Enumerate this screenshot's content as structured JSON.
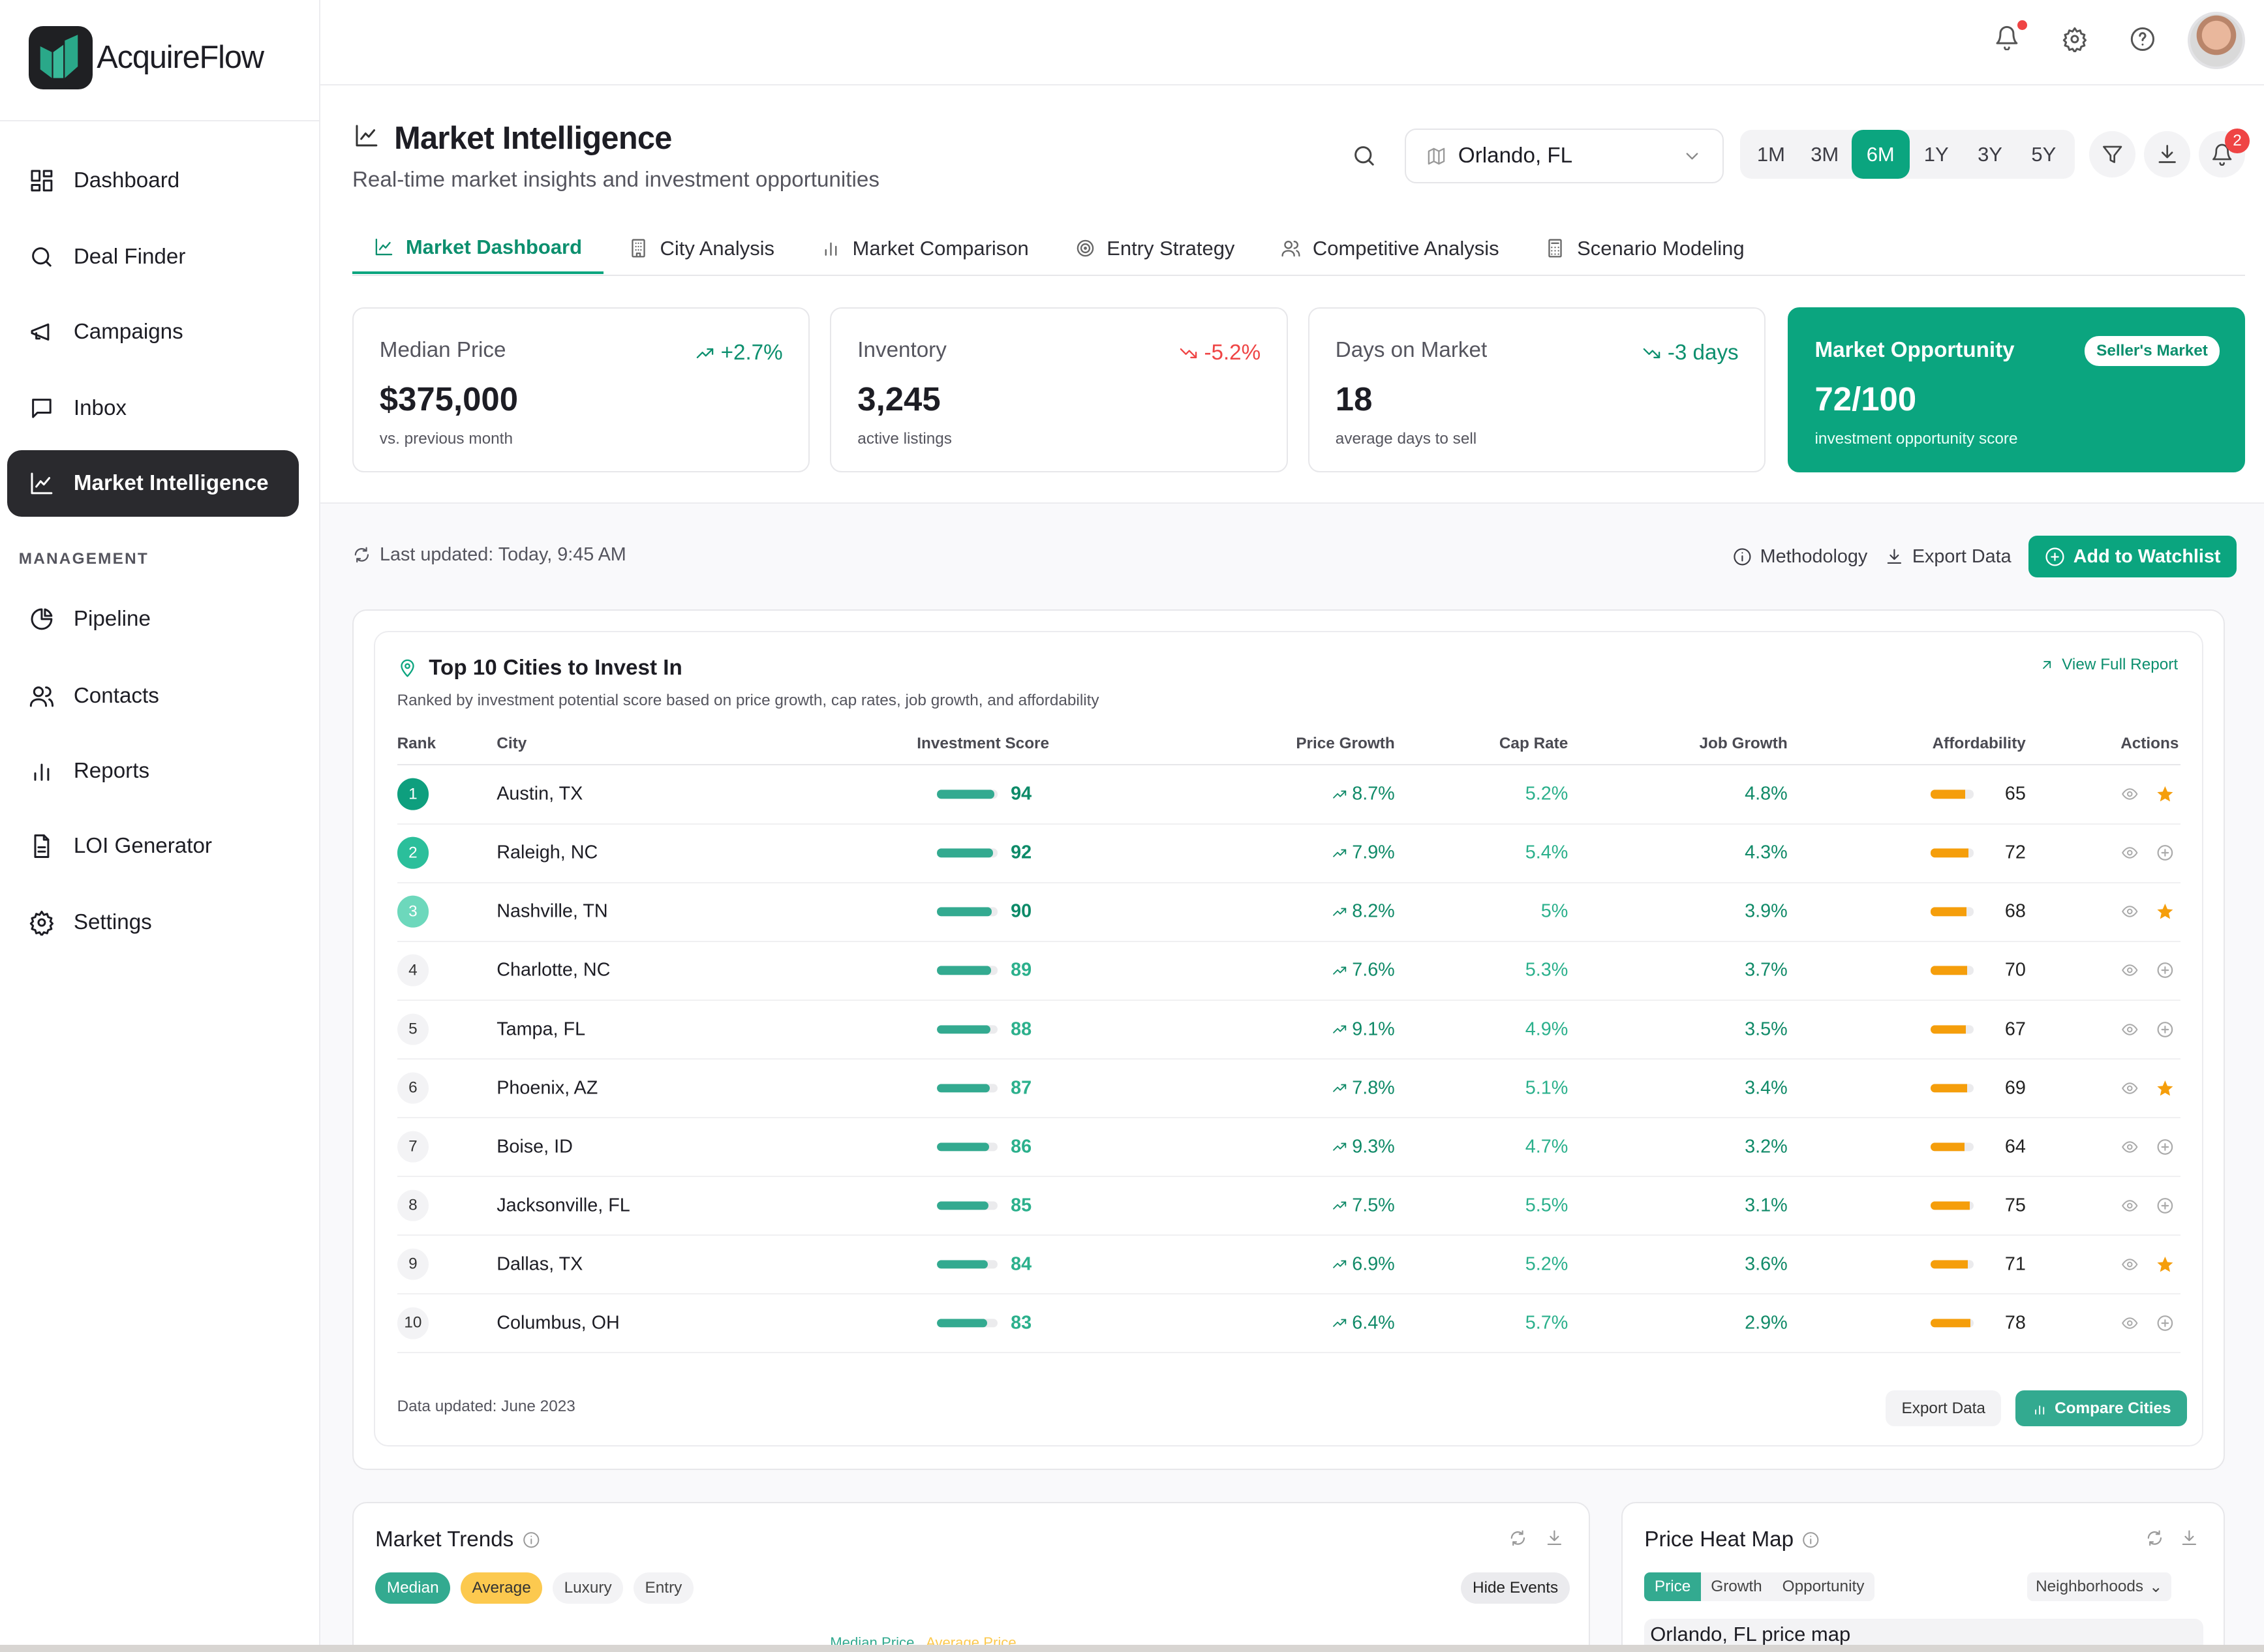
{
  "brand": {
    "name": "AcquireFlow"
  },
  "colors": {
    "accent": "#0ba57f",
    "active_nav": "#2a2a2e",
    "negative": "#ef4444",
    "affordability": "#f59e0b"
  },
  "sidebar": {
    "items": [
      {
        "label": "Dashboard",
        "icon": "dashboard-icon"
      },
      {
        "label": "Deal Finder",
        "icon": "search-icon"
      },
      {
        "label": "Campaigns",
        "icon": "megaphone-icon"
      },
      {
        "label": "Inbox",
        "icon": "message-icon"
      },
      {
        "label": "Market Intelligence",
        "icon": "chart-line-icon",
        "active": true
      }
    ],
    "section_label": "MANAGEMENT",
    "management": [
      {
        "label": "Pipeline",
        "icon": "pie-chart-icon"
      },
      {
        "label": "Contacts",
        "icon": "users-icon"
      },
      {
        "label": "Reports",
        "icon": "bar-chart-icon"
      },
      {
        "label": "LOI Generator",
        "icon": "file-text-icon"
      },
      {
        "label": "Settings",
        "icon": "gear-icon"
      }
    ]
  },
  "header": {
    "title": "Market Intelligence",
    "subtitle": "Real-time market insights and investment opportunities",
    "location": "Orlando, FL",
    "periods": [
      "1M",
      "3M",
      "6M",
      "1Y",
      "3Y",
      "5Y"
    ],
    "selected_period": "6M",
    "notification_count": "2"
  },
  "tabs": [
    {
      "label": "Market Dashboard",
      "active": true
    },
    {
      "label": "City Analysis"
    },
    {
      "label": "Market Comparison"
    },
    {
      "label": "Entry Strategy"
    },
    {
      "label": "Competitive Analysis"
    },
    {
      "label": "Scenario Modeling"
    }
  ],
  "cards": [
    {
      "label": "Median Price",
      "delta": "+2.7%",
      "trend": "up",
      "value": "$375,000",
      "sub": "vs. previous month"
    },
    {
      "label": "Inventory",
      "delta": "-5.2%",
      "trend": "down-negative",
      "value": "3,245",
      "sub": "active listings"
    },
    {
      "label": "Days on Market",
      "delta": "-3 days",
      "trend": "down-positive",
      "value": "18",
      "sub": "average days to sell"
    },
    {
      "label": "Market Opportunity",
      "badge": "Seller's Market",
      "value": "72/100",
      "sub": "investment opportunity score"
    }
  ],
  "toolbar": {
    "last_updated": "Last updated: Today, 9:45 AM",
    "methodology": "Methodology",
    "export": "Export Data",
    "watchlist": "Add to Watchlist"
  },
  "cities": {
    "title": "Top 10 Cities to Invest In",
    "subtitle": "Ranked by investment potential score based on price growth, cap rates, job growth, and affordability",
    "view_full": "View Full Report",
    "columns": [
      "Rank",
      "City",
      "Investment Score",
      "Price Growth",
      "Cap Rate",
      "Job Growth",
      "Affordability",
      "Actions"
    ],
    "rows": [
      {
        "rank": "1",
        "city": "Austin, TX",
        "score": 94,
        "price_growth": "8.7%",
        "cap_rate": "5.2%",
        "job_growth": "4.8%",
        "affordability": 65,
        "starred": true
      },
      {
        "rank": "2",
        "city": "Raleigh, NC",
        "score": 92,
        "price_growth": "7.9%",
        "cap_rate": "5.4%",
        "job_growth": "4.3%",
        "affordability": 72,
        "starred": false
      },
      {
        "rank": "3",
        "city": "Nashville, TN",
        "score": 90,
        "price_growth": "8.2%",
        "cap_rate": "5%",
        "job_growth": "3.9%",
        "affordability": 68,
        "starred": true
      },
      {
        "rank": "4",
        "city": "Charlotte, NC",
        "score": 89,
        "price_growth": "7.6%",
        "cap_rate": "5.3%",
        "job_growth": "3.7%",
        "affordability": 70,
        "starred": false
      },
      {
        "rank": "5",
        "city": "Tampa, FL",
        "score": 88,
        "price_growth": "9.1%",
        "cap_rate": "4.9%",
        "job_growth": "3.5%",
        "affordability": 67,
        "starred": false
      },
      {
        "rank": "6",
        "city": "Phoenix, AZ",
        "score": 87,
        "price_growth": "7.8%",
        "cap_rate": "5.1%",
        "job_growth": "3.4%",
        "affordability": 69,
        "starred": true
      },
      {
        "rank": "7",
        "city": "Boise, ID",
        "score": 86,
        "price_growth": "9.3%",
        "cap_rate": "4.7%",
        "job_growth": "3.2%",
        "affordability": 64,
        "starred": false
      },
      {
        "rank": "8",
        "city": "Jacksonville, FL",
        "score": 85,
        "price_growth": "7.5%",
        "cap_rate": "5.5%",
        "job_growth": "3.1%",
        "affordability": 75,
        "starred": false
      },
      {
        "rank": "9",
        "city": "Dallas, TX",
        "score": 84,
        "price_growth": "6.9%",
        "cap_rate": "5.2%",
        "job_growth": "3.6%",
        "affordability": 71,
        "starred": true
      },
      {
        "rank": "10",
        "city": "Columbus, OH",
        "score": 83,
        "price_growth": "6.4%",
        "cap_rate": "5.7%",
        "job_growth": "2.9%",
        "affordability": 78,
        "starred": false
      }
    ],
    "footer": "Data updated: June 2023",
    "export": "Export Data",
    "compare": "Compare Cities"
  },
  "trends": {
    "title": "Market Trends",
    "chips": [
      "Median",
      "Average",
      "Luxury",
      "Entry"
    ],
    "hide_events": "Hide Events",
    "legend": [
      "Median Price",
      "Average Price"
    ]
  },
  "heatmap": {
    "title": "Price Heat Map",
    "segments": [
      "Price",
      "Growth",
      "Opportunity"
    ],
    "dropdown": "Neighborhoods",
    "image_alt": "Orlando, FL price map"
  }
}
